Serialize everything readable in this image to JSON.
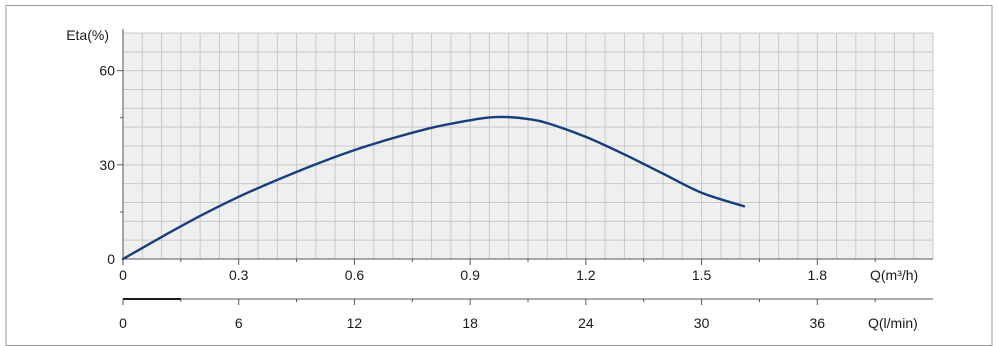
{
  "chart_data": {
    "type": "line",
    "ylabel": "Eta(%)",
    "xlabel": "Q(m³/h)",
    "x2label": "Q(l/min)",
    "xlim": [
      0,
      2.1
    ],
    "ylim": [
      0,
      72
    ],
    "x2lim": [
      0,
      42
    ],
    "xticks": [
      0,
      0.3,
      0.6,
      0.9,
      1.2,
      1.5,
      1.8
    ],
    "xtick_labels": [
      "0",
      "0.3",
      "0.6",
      "0.9",
      "1.2",
      "1.5",
      "1.8"
    ],
    "x2ticks": [
      0,
      6,
      12,
      18,
      24,
      30,
      36
    ],
    "x2tick_labels": [
      "0",
      "6",
      "12",
      "18",
      "24",
      "30",
      "36"
    ],
    "yticks": [
      0,
      30,
      60
    ],
    "ytick_labels": [
      "0",
      "30",
      "60"
    ],
    "grid": true,
    "series": [
      {
        "color": "#163f7c",
        "x": [
          0,
          0.1,
          0.2,
          0.3,
          0.4,
          0.5,
          0.6,
          0.7,
          0.8,
          0.9,
          0.95,
          1.0,
          1.05,
          1.1,
          1.2,
          1.3,
          1.4,
          1.5,
          1.61
        ],
        "y": [
          0,
          7,
          13.7,
          19.8,
          25.2,
          30.2,
          34.7,
          38.5,
          41.8,
          44.2,
          45.1,
          45.2,
          44.6,
          43.3,
          38.9,
          33.3,
          27.2,
          21.1,
          16.8
        ]
      }
    ]
  },
  "colors": {
    "grid": "#c8c8c8",
    "plot_bg": "#efefef",
    "axis": "#555555",
    "frame": "#9a9a9a"
  }
}
